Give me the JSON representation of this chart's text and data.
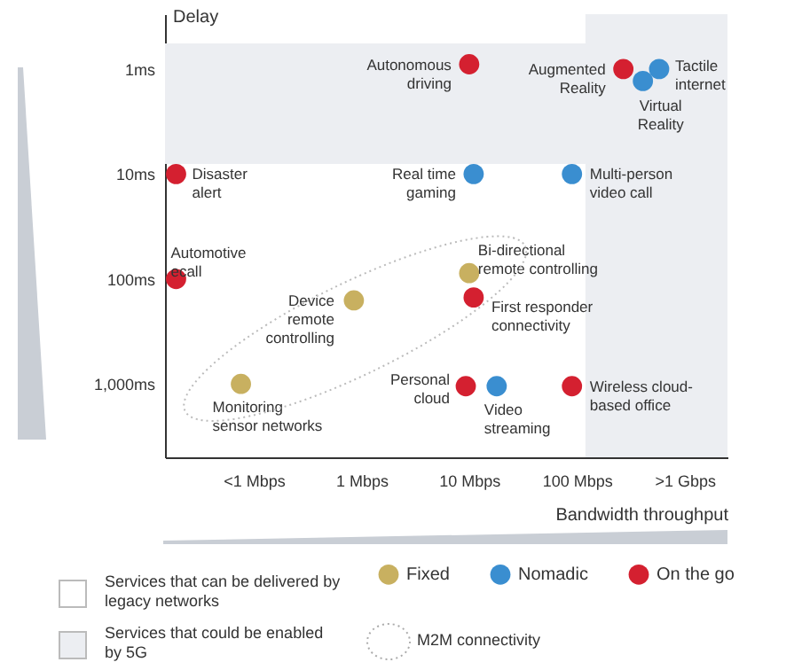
{
  "chart_data": {
    "type": "scatter",
    "xlabel": "Bandwidth throughput",
    "ylabel": "Delay",
    "log": "xy",
    "marker": "circle",
    "legend": "bottom",
    "xlim": [
      0.015,
      2500
    ],
    "xticks": [
      {
        "value": 0.1,
        "label": "<1 Mbps"
      },
      {
        "value": 1,
        "label": "1 Mbps"
      },
      {
        "value": 10,
        "label": "10 Mbps"
      },
      {
        "value": 100,
        "label": "100 Mbps"
      },
      {
        "value": 1000,
        "label": ">1 Gbps"
      }
    ],
    "ylim": [
      5000,
      0.3
    ],
    "yticks": [
      {
        "value": 1,
        "label": "1ms"
      },
      {
        "value": 10,
        "label": "10ms"
      },
      {
        "value": 100,
        "label": "100ms"
      },
      {
        "value": 1000,
        "label": "1,000ms"
      }
    ],
    "series": [
      {
        "name": "Fixed",
        "color": "#c8b060",
        "x": [
          0.076,
          0.85,
          10
        ],
        "values": [
          1000,
          160,
          88
        ]
      },
      {
        "name": "Nomadic",
        "color": "#3a8ed0",
        "x": [
          580,
          410,
          11,
          90,
          18
        ],
        "values": [
          1,
          1.3,
          10,
          10,
          1050
        ]
      },
      {
        "name": "On the go",
        "color": "#d42030",
        "x": [
          10,
          270,
          0.019,
          0.019,
          11,
          9.3,
          90
        ],
        "values": [
          0.9,
          1,
          10,
          100,
          150,
          1050,
          1050
        ]
      }
    ],
    "bands": [
      {
        "axis": "y",
        "from": 0.57,
        "to": 8,
        "label": "Services that could be enabled by 5G",
        "color": "#eceef2"
      },
      {
        "axis": "x",
        "from": 120,
        "to": 2500,
        "color": "#eceef2"
      }
    ],
    "annotations": [
      {
        "text": "Autonomous driving",
        "x": 10,
        "y": 0.9
      },
      {
        "text": "Augmented Reality",
        "x": 270,
        "y": 1
      },
      {
        "text": "Tactile internet",
        "x": 580,
        "y": 1
      },
      {
        "text": "Virtual Reality",
        "x": 410,
        "y": 1.3
      },
      {
        "text": "Disaster alert",
        "x": 0.019,
        "y": 10
      },
      {
        "text": "Real time gaming",
        "x": 11,
        "y": 10
      },
      {
        "text": "Multi-person video call",
        "x": 90,
        "y": 10
      },
      {
        "text": "Automotive ecall",
        "x": 0.019,
        "y": 100
      },
      {
        "text": "Bi-directional remote controlling",
        "x": 10,
        "y": 88
      },
      {
        "text": "First responder connectivity",
        "x": 11,
        "y": 150
      },
      {
        "text": "Device remote controlling",
        "x": 0.85,
        "y": 160
      },
      {
        "text": "Monitoring sensor networks",
        "x": 0.076,
        "y": 1000
      },
      {
        "text": "Personal cloud",
        "x": 9.3,
        "y": 1050
      },
      {
        "text": "Video streaming",
        "x": 18,
        "y": 1050
      },
      {
        "text": "Wireless cloud-based office",
        "x": 90,
        "y": 1050
      },
      "Services that can be delivered by legacy networks",
      "M2M connectivity"
    ]
  }
}
